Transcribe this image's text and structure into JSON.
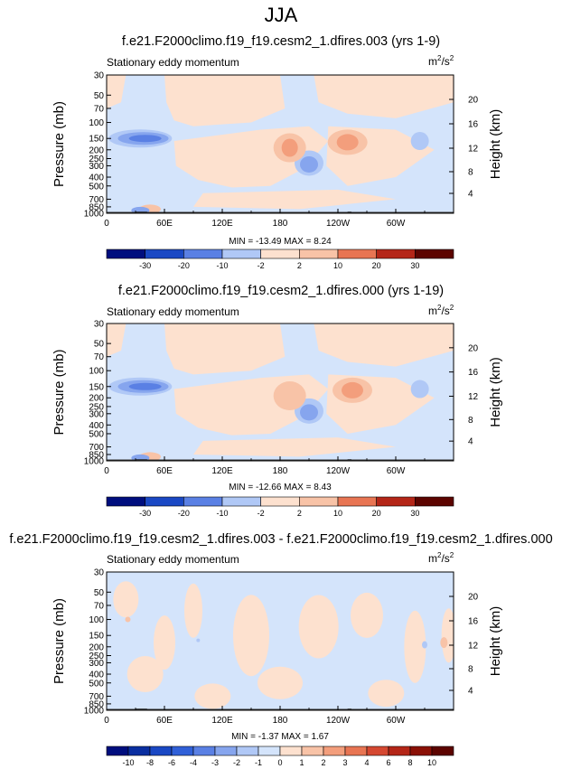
{
  "page": {
    "title": "JJA"
  },
  "panels": [
    {
      "title": "f.e21.F2000climo.f19_f19.cesm2_1.dfires.003 (yrs 1-9)",
      "left_label": "Stationary eddy momentum",
      "units": "m",
      "units_sup": "2",
      "units_mid": "/s",
      "units_sup2": "2",
      "min_max": "MIN = -13.49  MAX =  8.24",
      "colorbar_labels": [
        "-30",
        "-20",
        "-10",
        "-2",
        "2",
        "10",
        "20",
        "30"
      ]
    },
    {
      "title": "f.e21.F2000climo.f19_f19.cesm2_1.dfires.000 (yrs 1-19)",
      "left_label": "Stationary eddy momentum",
      "units": "m",
      "units_sup": "2",
      "units_mid": "/s",
      "units_sup2": "2",
      "min_max": "MIN = -12.66  MAX =  8.43",
      "colorbar_labels": [
        "-30",
        "-20",
        "-10",
        "-2",
        "2",
        "10",
        "20",
        "30"
      ]
    },
    {
      "title": "f.e21.F2000climo.f19_f19.cesm2_1.dfires.003 - f.e21.F2000climo.f19_f19.cesm2_1.dfires.000",
      "left_label": "Stationary eddy momentum",
      "units": "m",
      "units_sup": "2",
      "units_mid": "/s",
      "units_sup2": "2",
      "min_max": "MIN = -1.37  MAX =  1.67",
      "colorbar_labels": [
        "-10",
        "-8",
        "-6",
        "-4",
        "-3",
        "-2",
        "-1",
        "0",
        "1",
        "2",
        "3",
        "4",
        "6",
        "8",
        "10"
      ]
    }
  ],
  "chart_data": [
    {
      "type": "heatmap",
      "title": "f.e21.F2000climo.f19_f19.cesm2_1.dfires.003 (yrs 1-9)",
      "xlabel": "",
      "ylabel": "Pressure (mb)",
      "ylabel_right": "Height (km)",
      "x_ticks": [
        "0",
        "60E",
        "120E",
        "180",
        "120W",
        "60W"
      ],
      "y_ticks": [
        "30",
        "50",
        "70",
        "100",
        "150",
        "200",
        "250",
        "300",
        "400",
        "500",
        "700",
        "850",
        "1000"
      ],
      "y_ticks_right": [
        "20",
        "16",
        "12",
        "8",
        "4"
      ],
      "ylim": [
        1000,
        30
      ],
      "log_y": true,
      "min": -13.49,
      "max": 8.24,
      "colors": [
        "#000e7e",
        "#0a2ea0",
        "#1a48c4",
        "#3060d8",
        "#5a80e4",
        "#86a5ee",
        "#b0c8f6",
        "#d4e4fb",
        "#fde1cf",
        "#f8c3a7",
        "#f39e7c",
        "#e87553",
        "#d54831",
        "#b42618",
        "#8a1006",
        "#5c0400"
      ],
      "regions": [
        {
          "desc": "negative core",
          "lon": [
            10,
            75
          ],
          "p": [
            130,
            180
          ],
          "value": -9
        },
        {
          "desc": "negative",
          "lon": [
            200,
            220
          ],
          "p": [
            250,
            350
          ],
          "value": -4
        },
        {
          "desc": "positive core",
          "lon": [
            175,
            200
          ],
          "p": [
            150,
            250
          ],
          "value": 6
        },
        {
          "desc": "positive core",
          "lon": [
            235,
            260
          ],
          "p": [
            150,
            200
          ],
          "value": 7
        }
      ]
    },
    {
      "type": "heatmap",
      "title": "f.e21.F2000climo.f19_f19.cesm2_1.dfires.000 (yrs 1-19)",
      "xlabel": "",
      "ylabel": "Pressure (mb)",
      "ylabel_right": "Height (km)",
      "x_ticks": [
        "0",
        "60E",
        "120E",
        "180",
        "120W",
        "60W"
      ],
      "y_ticks": [
        "30",
        "50",
        "70",
        "100",
        "150",
        "200",
        "250",
        "300",
        "400",
        "500",
        "700",
        "850",
        "1000"
      ],
      "y_ticks_right": [
        "20",
        "16",
        "12",
        "8",
        "4"
      ],
      "ylim": [
        1000,
        30
      ],
      "log_y": true,
      "min": -12.66,
      "max": 8.43,
      "colors": [
        "#000e7e",
        "#0a2ea0",
        "#1a48c4",
        "#3060d8",
        "#5a80e4",
        "#86a5ee",
        "#b0c8f6",
        "#d4e4fb",
        "#fde1cf",
        "#f8c3a7",
        "#f39e7c",
        "#e87553",
        "#d54831",
        "#b42618",
        "#8a1006",
        "#5c0400"
      ],
      "regions": [
        {
          "desc": "negative core",
          "lon": [
            10,
            75
          ],
          "p": [
            130,
            170
          ],
          "value": -8
        },
        {
          "desc": "negative",
          "lon": [
            210,
            230
          ],
          "p": [
            200,
            300
          ],
          "value": -4
        },
        {
          "desc": "positive core",
          "lon": [
            240,
            275
          ],
          "p": [
            150,
            200
          ],
          "value": 7
        },
        {
          "desc": "positive",
          "lon": [
            175,
            205
          ],
          "p": [
            150,
            250
          ],
          "value": 4
        }
      ]
    },
    {
      "type": "heatmap",
      "title": "f.e21.F2000climo.f19_f19.cesm2_1.dfires.003 - f.e21.F2000climo.f19_f19.cesm2_1.dfires.000",
      "xlabel": "",
      "ylabel": "Pressure (mb)",
      "ylabel_right": "Height (km)",
      "x_ticks": [
        "0",
        "60E",
        "120E",
        "180",
        "120W",
        "60W"
      ],
      "y_ticks": [
        "30",
        "50",
        "70",
        "100",
        "150",
        "200",
        "250",
        "300",
        "400",
        "500",
        "700",
        "850",
        "1000"
      ],
      "y_ticks_right": [
        "20",
        "16",
        "12",
        "8",
        "4"
      ],
      "ylim": [
        1000,
        30
      ],
      "log_y": true,
      "min": -1.37,
      "max": 1.67,
      "colors": [
        "#000e7e",
        "#0a2ea0",
        "#1a48c4",
        "#3060d8",
        "#5a80e4",
        "#86a5ee",
        "#b0c8f6",
        "#d4e4fb",
        "#fde1cf",
        "#f8c3a7",
        "#f39e7c",
        "#e87553",
        "#d54831",
        "#b42618",
        "#8a1006",
        "#5c0400"
      ],
      "regions": [
        {
          "desc": "positive patches",
          "lon": [
            0,
            360
          ],
          "p": [
            30,
            1000
          ],
          "value": 0.5
        },
        {
          "desc": "negative patches",
          "lon": [
            0,
            360
          ],
          "p": [
            30,
            1000
          ],
          "value": -0.5
        }
      ]
    }
  ]
}
